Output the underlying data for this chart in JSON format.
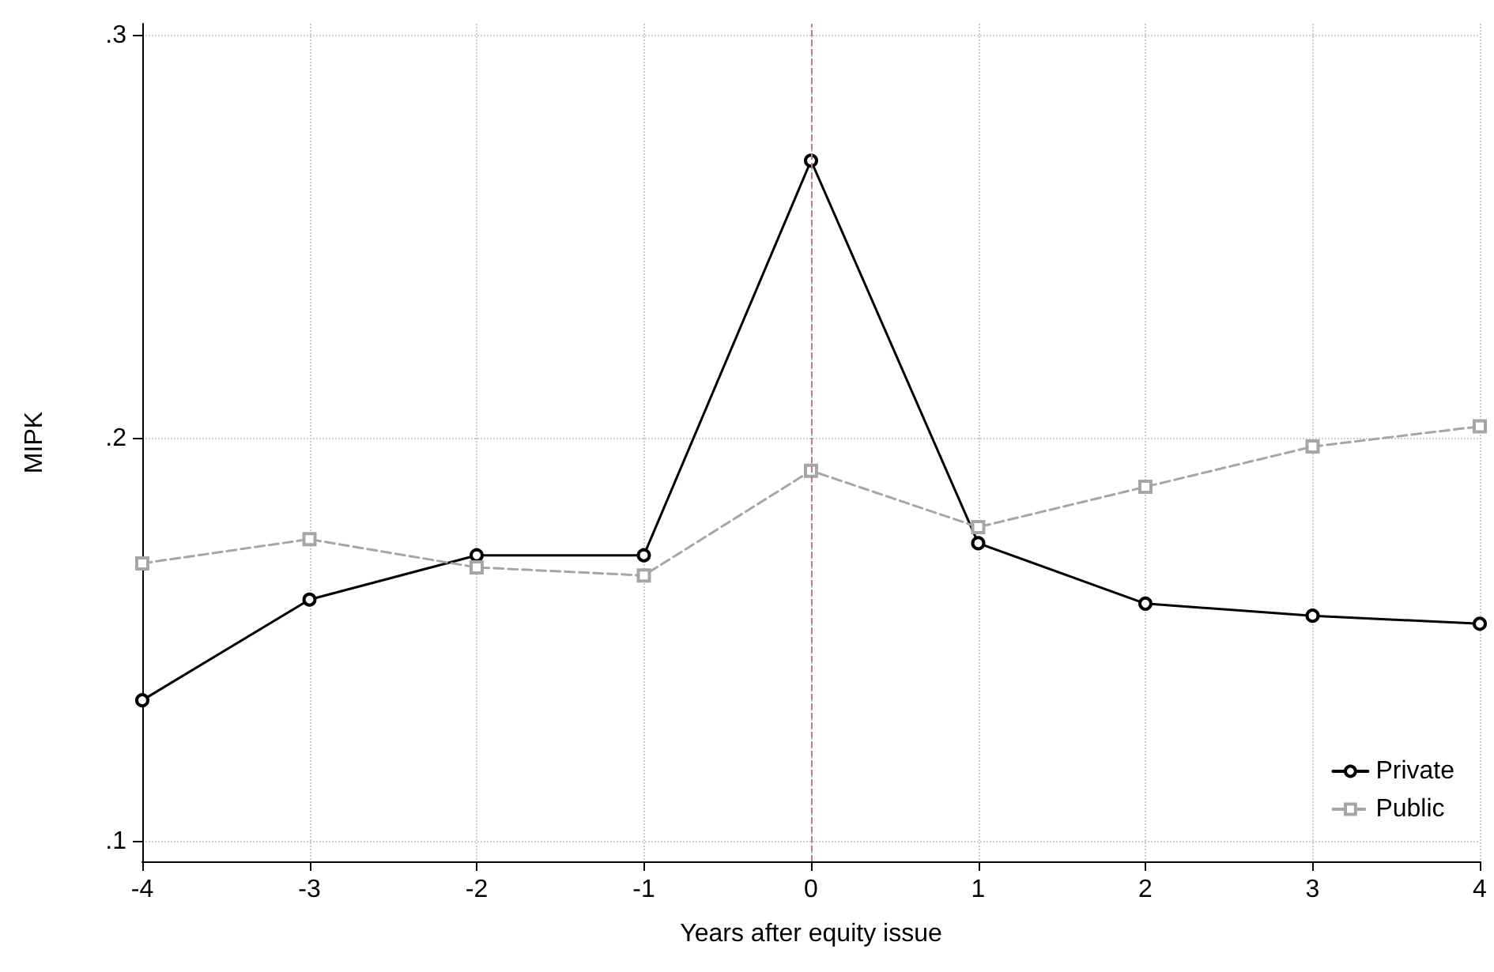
{
  "chart_data": {
    "type": "line",
    "xlabel": "Years after equity issue",
    "ylabel": "MIPK",
    "x": [
      -4,
      -3,
      -2,
      -1,
      0,
      1,
      2,
      3,
      4
    ],
    "series": [
      {
        "name": "Private",
        "color": "#000000",
        "values": [
          0.135,
          0.16,
          0.171,
          0.171,
          0.269,
          0.174,
          0.159,
          0.156,
          0.154
        ],
        "marker": "circle",
        "line_style": "solid"
      },
      {
        "name": "Public",
        "color": "#a6a6a6",
        "values": [
          0.169,
          0.175,
          0.168,
          0.166,
          0.192,
          0.178,
          0.188,
          0.198,
          0.203
        ],
        "marker": "square",
        "line_style": "dashed"
      }
    ],
    "xlim": [
      -4,
      4
    ],
    "xticks": [
      -4,
      -3,
      -2,
      -1,
      0,
      1,
      2,
      3,
      4
    ],
    "ylim": [
      0.095,
      0.303
    ],
    "yticks": [
      {
        "value": 0.1,
        "label": ".1"
      },
      {
        "value": 0.2,
        "label": ".2"
      },
      {
        "value": 0.3,
        "label": ".3"
      }
    ],
    "grid": true,
    "legend": "bottom right",
    "ref_lines": [
      {
        "axis": "x",
        "value": 0,
        "color": "#c07a8c",
        "line_style": "dashed"
      }
    ]
  }
}
